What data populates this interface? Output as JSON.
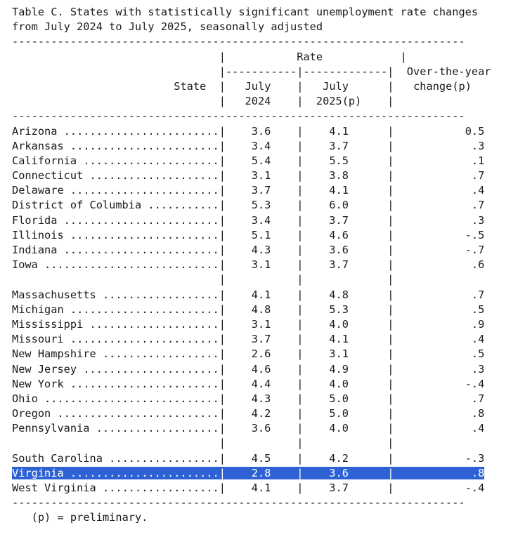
{
  "title_line1": "Table C. States with statistically significant unemployment rate changes",
  "title_line2": "from July 2024 to July 2025, seasonally adjusted",
  "header": {
    "rate": "Rate",
    "state": "State",
    "change_l1": "Over-the-year",
    "change_l2": "change(p)",
    "col1_l1": "July",
    "col1_l2": "2024",
    "col2_l1": "July",
    "col2_l2": "2025(p)"
  },
  "groups": [
    [
      {
        "state": "Arizona",
        "r2024": "3.6",
        "r2025": "4.1",
        "change": "0.5"
      },
      {
        "state": "Arkansas",
        "r2024": "3.4",
        "r2025": "3.7",
        "change": ".3"
      },
      {
        "state": "California",
        "r2024": "5.4",
        "r2025": "5.5",
        "change": ".1"
      },
      {
        "state": "Connecticut",
        "r2024": "3.1",
        "r2025": "3.8",
        "change": ".7"
      },
      {
        "state": "Delaware",
        "r2024": "3.7",
        "r2025": "4.1",
        "change": ".4"
      },
      {
        "state": "District of Columbia",
        "r2024": "5.3",
        "r2025": "6.0",
        "change": ".7"
      },
      {
        "state": "Florida",
        "r2024": "3.4",
        "r2025": "3.7",
        "change": ".3"
      },
      {
        "state": "Illinois",
        "r2024": "5.1",
        "r2025": "4.6",
        "change": "-.5"
      },
      {
        "state": "Indiana",
        "r2024": "4.3",
        "r2025": "3.6",
        "change": "-.7"
      },
      {
        "state": "Iowa",
        "r2024": "3.1",
        "r2025": "3.7",
        "change": ".6"
      }
    ],
    [
      {
        "state": "Massachusetts",
        "r2024": "4.1",
        "r2025": "4.8",
        "change": ".7"
      },
      {
        "state": "Michigan",
        "r2024": "4.8",
        "r2025": "5.3",
        "change": ".5"
      },
      {
        "state": "Mississippi",
        "r2024": "3.1",
        "r2025": "4.0",
        "change": ".9"
      },
      {
        "state": "Missouri",
        "r2024": "3.7",
        "r2025": "4.1",
        "change": ".4"
      },
      {
        "state": "New Hampshire",
        "r2024": "2.6",
        "r2025": "3.1",
        "change": ".5"
      },
      {
        "state": "New Jersey",
        "r2024": "4.6",
        "r2025": "4.9",
        "change": ".3"
      },
      {
        "state": "New York",
        "r2024": "4.4",
        "r2025": "4.0",
        "change": "-.4"
      },
      {
        "state": "Ohio",
        "r2024": "4.3",
        "r2025": "5.0",
        "change": ".7"
      },
      {
        "state": "Oregon",
        "r2024": "4.2",
        "r2025": "5.0",
        "change": ".8"
      },
      {
        "state": "Pennsylvania",
        "r2024": "3.6",
        "r2025": "4.0",
        "change": ".4"
      }
    ],
    [
      {
        "state": "South Carolina",
        "r2024": "4.5",
        "r2025": "4.2",
        "change": "-.3"
      },
      {
        "state": "Virginia",
        "r2024": "2.8",
        "r2025": "3.6",
        "change": ".8",
        "selected": true
      },
      {
        "state": "West Virginia",
        "r2024": "4.1",
        "r2025": "3.7",
        "change": "-.4"
      }
    ]
  ],
  "footnote": "(p) = preliminary.",
  "highlight_color": "#2e62d4"
}
